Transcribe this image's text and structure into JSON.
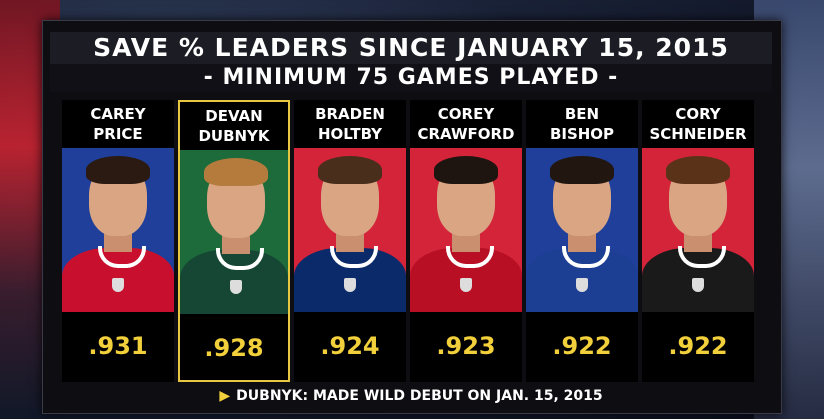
{
  "title": "SAVE % LEADERS SINCE JANUARY 15, 2015",
  "subtitle": "- MINIMUM 75 GAMES PLAYED -",
  "players": [
    {
      "first": "CAREY",
      "last": "PRICE",
      "save_pct": ".931",
      "bg": "#1f3f9a",
      "jersey": "#c8102e",
      "hair": "#2a1a12"
    },
    {
      "first": "DEVAN",
      "last": "DUBNYK",
      "save_pct": ".928",
      "bg": "#1d6b3a",
      "jersey": "#154734",
      "hair": "#b57b3c"
    },
    {
      "first": "BRADEN",
      "last": "HOLTBY",
      "save_pct": ".924",
      "bg": "#d3243a",
      "jersey": "#0a2a6a",
      "hair": "#4a2e1c"
    },
    {
      "first": "COREY",
      "last": "CRAWFORD",
      "save_pct": ".923",
      "bg": "#d3243a",
      "jersey": "#b80f24",
      "hair": "#1e1410"
    },
    {
      "first": "BEN",
      "last": "BISHOP",
      "save_pct": ".922",
      "bg": "#1f3f9a",
      "jersey": "#1c3f94",
      "hair": "#221710"
    },
    {
      "first": "CORY",
      "last": "SCHNEIDER",
      "save_pct": ".922",
      "bg": "#d3243a",
      "jersey": "#1a1a1a",
      "hair": "#5a3218"
    }
  ],
  "highlight_index": 1,
  "footer": "DUBNYK: MADE WILD DEBUT ON JAN. 15, 2015",
  "colors": {
    "value": "#f2d03b",
    "highlight_border": "#e7c742"
  }
}
